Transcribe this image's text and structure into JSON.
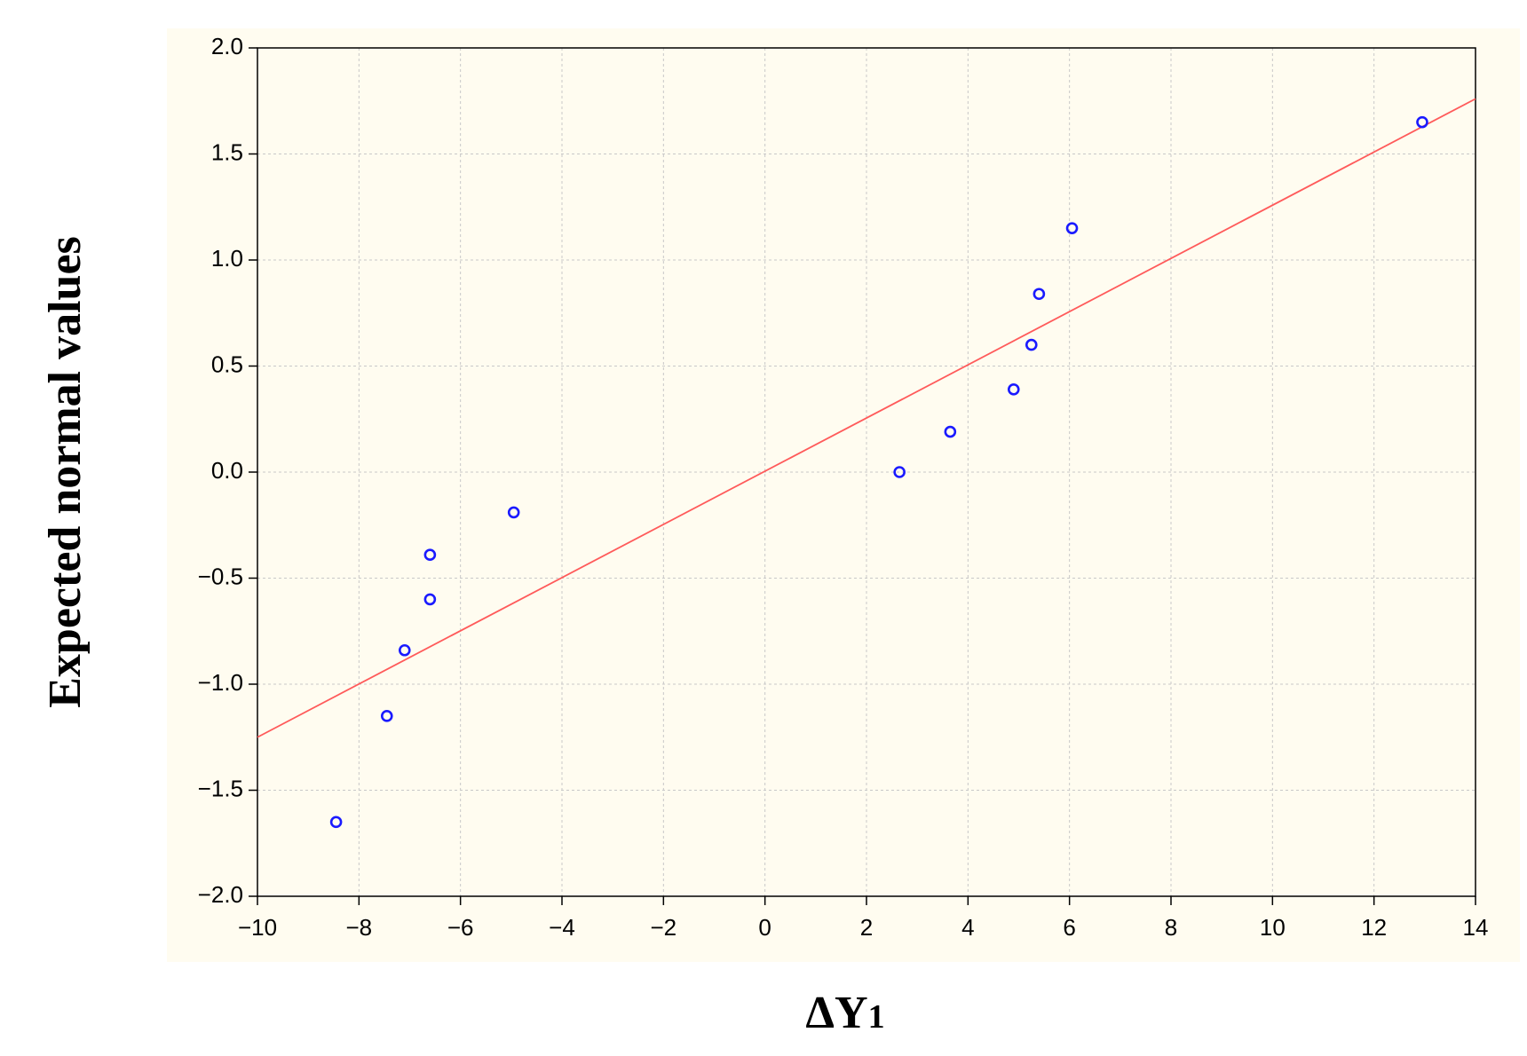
{
  "chart_data": {
    "type": "scatter",
    "xlabel": "ΔY",
    "xlabel_subscript": "1",
    "ylabel": "Expected normal values",
    "xlim": [
      -10,
      14
    ],
    "ylim": [
      -2.0,
      2.0
    ],
    "x_ticks": [
      -10,
      -8,
      -6,
      -4,
      -2,
      0,
      2,
      4,
      6,
      8,
      10,
      12,
      14
    ],
    "x_tick_labels": [
      "−10",
      "−8",
      "−6",
      "−4",
      "−2",
      "0",
      "2",
      "4",
      "6",
      "8",
      "10",
      "12",
      "14"
    ],
    "y_ticks": [
      2.0,
      1.5,
      1.0,
      0.5,
      0.0,
      -0.5,
      -1.0,
      -1.5,
      -2.0
    ],
    "y_tick_labels": [
      "2.0",
      "1.5",
      "1.0",
      "0.5",
      "0.0",
      "−0.5",
      "−1.0",
      "−1.5",
      "−2.0"
    ],
    "grid": true,
    "points": [
      {
        "x": -8.45,
        "y": -1.65
      },
      {
        "x": -7.45,
        "y": -1.15
      },
      {
        "x": -7.1,
        "y": -0.84
      },
      {
        "x": -6.6,
        "y": -0.6
      },
      {
        "x": -6.6,
        "y": -0.39
      },
      {
        "x": -4.95,
        "y": -0.19
      },
      {
        "x": 2.65,
        "y": 0.0
      },
      {
        "x": 3.65,
        "y": 0.19
      },
      {
        "x": 4.9,
        "y": 0.39
      },
      {
        "x": 5.25,
        "y": 0.6
      },
      {
        "x": 5.4,
        "y": 0.84
      },
      {
        "x": 6.05,
        "y": 1.15
      },
      {
        "x": 12.95,
        "y": 1.65
      }
    ],
    "fit_line": {
      "x": [
        -10,
        14
      ],
      "y": [
        -1.25,
        1.76
      ]
    },
    "colors": {
      "points": "#1a1aff",
      "fit_line": "#ff5a5a",
      "panel_background": "#fffcf0"
    }
  }
}
